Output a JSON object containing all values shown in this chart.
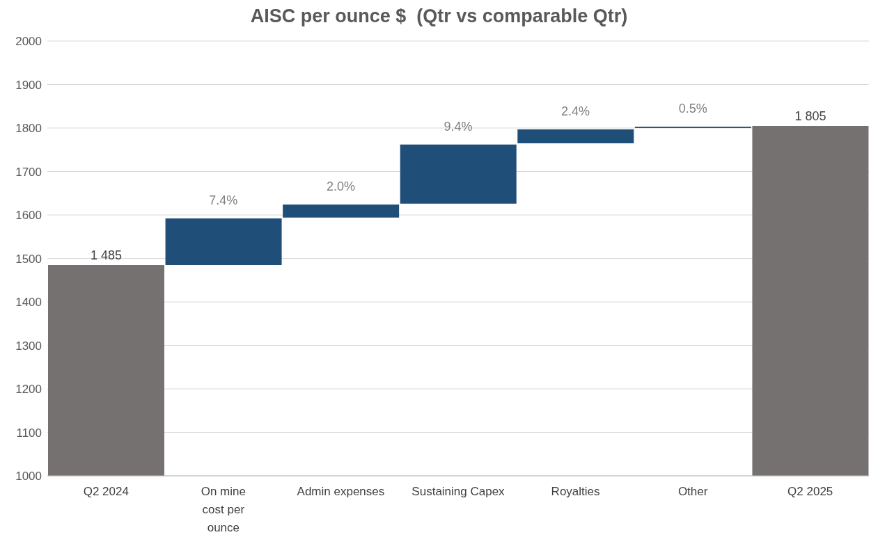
{
  "chart_data": {
    "type": "bar",
    "title": "AISC per ounce $  (Qtr vs comparable Qtr)",
    "categories": [
      "Q2 2024",
      "On mine cost per ounce",
      "Admin expenses",
      "Sustaining Capex",
      "Royalties",
      "Other",
      "Q2 2025"
    ],
    "values": [
      1485,
      107,
      30,
      136,
      32,
      3,
      1805
    ],
    "base": [
      null,
      1485,
      1594,
      1626,
      1765,
      1800,
      null
    ],
    "colors": [
      "#767171",
      "#1f4e79",
      "#1f4e79",
      "#1f4e79",
      "#1f4e79",
      "#1f4e79",
      "#767171"
    ],
    "value_labels": [
      "1 485",
      null,
      null,
      null,
      null,
      null,
      "1 805"
    ],
    "annotations": [
      {
        "text": "7.4%",
        "x": "On mine cost per ounce",
        "y": 1592
      },
      {
        "text": "2.0%",
        "x": "Admin expenses",
        "y": 1624
      },
      {
        "text": "9.4%",
        "x": "Sustaining Capex",
        "y": 1762
      },
      {
        "text": "2.4%",
        "x": "Royalties",
        "y": 1797
      },
      {
        "text": "0.5%",
        "x": "Other",
        "y": 1803
      }
    ],
    "ylim": [
      1000,
      2000
    ],
    "yticks": [
      1000,
      1100,
      1200,
      1300,
      1400,
      1500,
      1600,
      1700,
      1800,
      1900,
      2000
    ],
    "grid": "y",
    "legend": false
  }
}
